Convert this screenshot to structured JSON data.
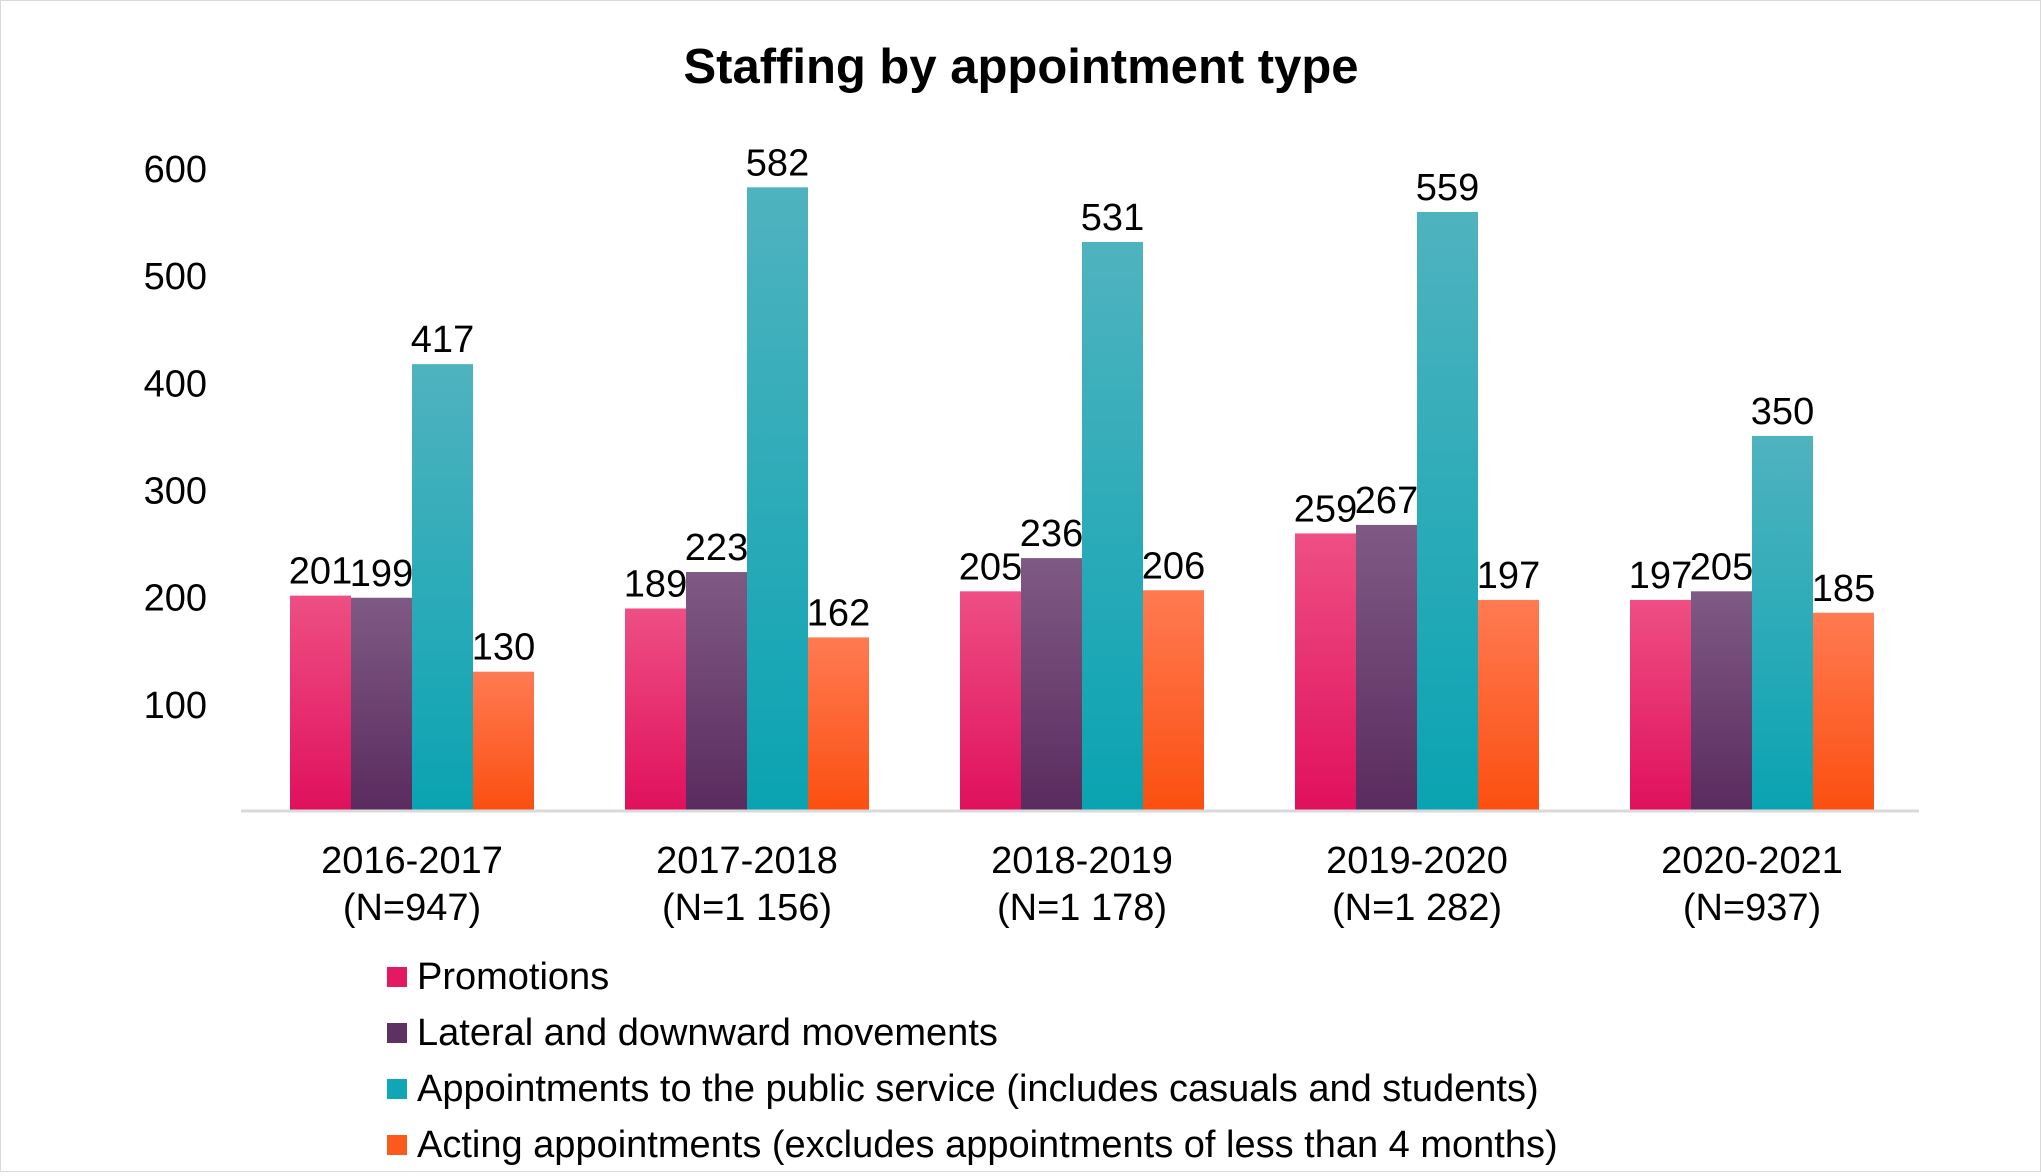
{
  "chart_data": {
    "type": "bar",
    "title": "Staffing by appointment type",
    "xlabel": "",
    "ylabel": "",
    "ylim": [
      0,
      600
    ],
    "yticks": [
      100,
      200,
      300,
      400,
      500,
      600
    ],
    "grid": false,
    "legend_position": "bottom",
    "categories": [
      {
        "line1": "2016-2017",
        "line2": "(N=947)"
      },
      {
        "line1": "2017-2018",
        "line2": "(N=1 156)"
      },
      {
        "line1": "2018-2019",
        "line2": "(N=1 178)"
      },
      {
        "line1": "2019-2020",
        "line2": "(N=1 282)"
      },
      {
        "line1": "2020-2021",
        "line2": "(N=937)"
      }
    ],
    "series": [
      {
        "name": "Promotions",
        "values": [
          201,
          189,
          205,
          259,
          197
        ],
        "color_top": "#ee4f84",
        "color_bottom": "#e0105c",
        "swatch": "#e31a62"
      },
      {
        "name": "Lateral and downward movements",
        "values": [
          199,
          223,
          236,
          267,
          205
        ],
        "color_top": "#7f5a84",
        "color_bottom": "#5a2b5e",
        "swatch": "#5e3163"
      },
      {
        "name": "Appointments to the public service (includes casuals and students)",
        "values": [
          417,
          582,
          531,
          559,
          350
        ],
        "color_top": "#4fb3bf",
        "color_bottom": "#0aa3b2",
        "swatch": "#10a6b5"
      },
      {
        "name": "Acting appointments (excludes appointments of less than 4 months)",
        "values": [
          130,
          162,
          206,
          197,
          185
        ],
        "color_top": "#ff7a52",
        "color_bottom": "#fb4f10",
        "swatch": "#fc5a1c"
      }
    ]
  }
}
